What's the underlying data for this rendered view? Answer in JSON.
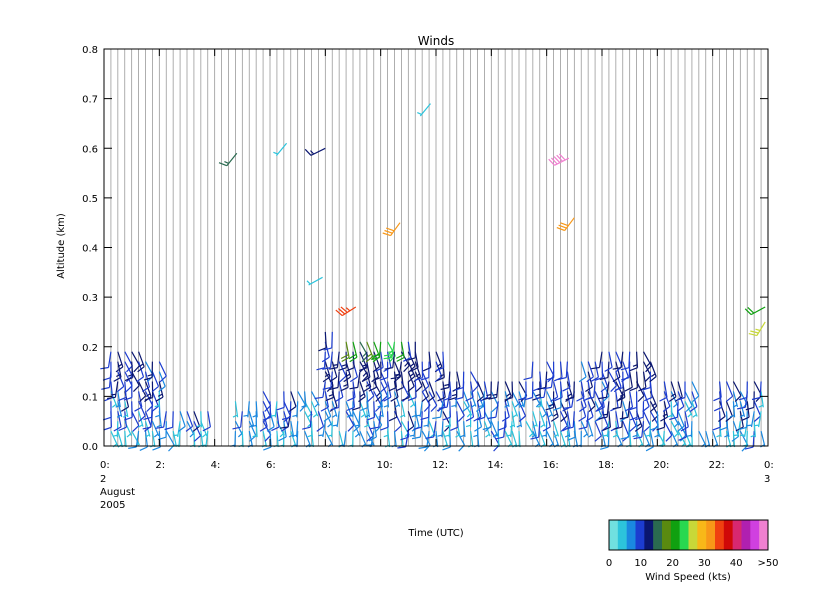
{
  "chart_data": {
    "type": "wind_barb_time_height",
    "title": "Winds",
    "xlabel": "Time (UTC)",
    "ylabel": "Altitude (km)",
    "date_label_lines": [
      "2",
      "August",
      "2005"
    ],
    "end_date_label": "3",
    "x_range_hours": [
      0,
      24
    ],
    "ylim": [
      0.0,
      0.8
    ],
    "x_ticks": [
      {
        "hour": 0,
        "label": "0:"
      },
      {
        "hour": 2,
        "label": "2:"
      },
      {
        "hour": 4,
        "label": "4:"
      },
      {
        "hour": 6,
        "label": "6:"
      },
      {
        "hour": 8,
        "label": "8:"
      },
      {
        "hour": 10,
        "label": "10:"
      },
      {
        "hour": 12,
        "label": "12:"
      },
      {
        "hour": 14,
        "label": "14:"
      },
      {
        "hour": 16,
        "label": "16:"
      },
      {
        "hour": 18,
        "label": "18:"
      },
      {
        "hour": 20,
        "label": "20:"
      },
      {
        "hour": 22,
        "label": "22:"
      },
      {
        "hour": 24,
        "label": "0:"
      }
    ],
    "y_ticks": [
      "0.0",
      "0.1",
      "0.2",
      "0.3",
      "0.4",
      "0.5",
      "0.6",
      "0.7",
      "0.8"
    ],
    "profile_interval_minutes": 15,
    "grid": "vertical lines at each profile time",
    "colorbar": {
      "title": "Wind Speed (kts)",
      "tick_labels": [
        "0",
        "10",
        "20",
        "30",
        "40",
        ">50"
      ],
      "colors": [
        "#70e0e0",
        "#2cc4dc",
        "#1a88e0",
        "#1c3cd0",
        "#0a1670",
        "#2a6a50",
        "#5a8a10",
        "#10a010",
        "#28d850",
        "#c8d838",
        "#f8b818",
        "#f89818",
        "#f04010",
        "#d00808",
        "#d82870",
        "#b020b0",
        "#d040e0",
        "#f080d0"
      ]
    },
    "notable_barbs": [
      {
        "hour": 4.8,
        "alt_km": 0.59,
        "speed_kts": 16
      },
      {
        "hour": 6.6,
        "alt_km": 0.61,
        "speed_kts": 5
      },
      {
        "hour": 8.0,
        "alt_km": 0.6,
        "speed_kts": 13
      },
      {
        "hour": 11.8,
        "alt_km": 0.69,
        "speed_kts": 4
      },
      {
        "hour": 10.7,
        "alt_km": 0.45,
        "speed_kts": 31
      },
      {
        "hour": 16.8,
        "alt_km": 0.58,
        "speed_kts": 48
      },
      {
        "hour": 17.0,
        "alt_km": 0.46,
        "speed_kts": 32
      },
      {
        "hour": 7.9,
        "alt_km": 0.34,
        "speed_kts": 4
      },
      {
        "hour": 9.1,
        "alt_km": 0.28,
        "speed_kts": 36
      },
      {
        "hour": 23.9,
        "alt_km": 0.28,
        "speed_kts": 20
      },
      {
        "hour": 23.9,
        "alt_km": 0.25,
        "speed_kts": 27
      }
    ]
  }
}
